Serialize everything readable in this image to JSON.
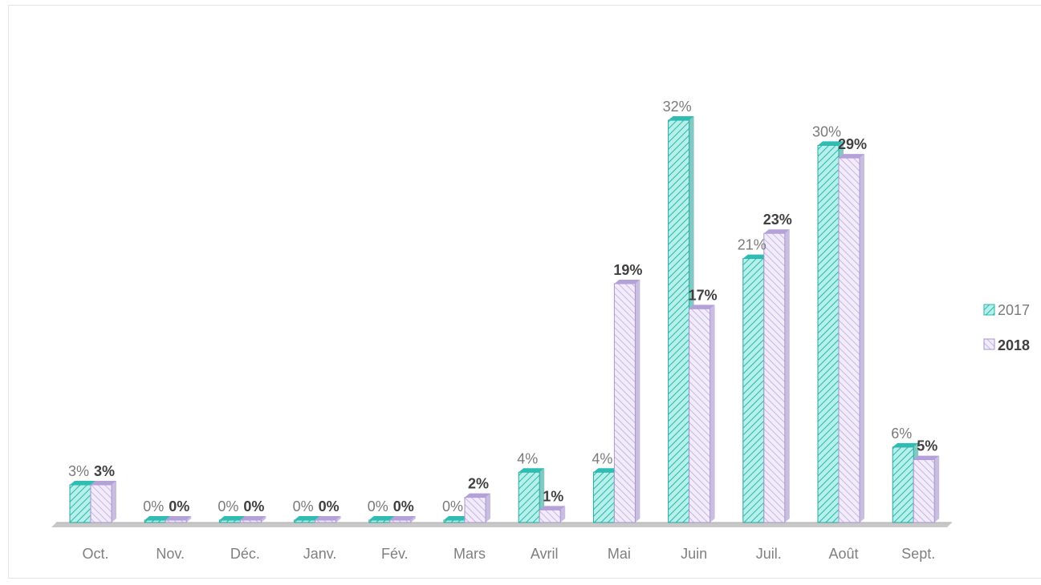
{
  "chart_data": {
    "type": "bar",
    "categories": [
      "Oct.",
      "Nov.",
      "Déc.",
      "Janv.",
      "Fév.",
      "Mars",
      "Avril",
      "Mai",
      "Juin",
      "Juil.",
      "Août",
      "Sept."
    ],
    "series": [
      {
        "name": "2017",
        "values": [
          3,
          0,
          0,
          0,
          0,
          0,
          4,
          4,
          32,
          21,
          30,
          6
        ],
        "labels": [
          "3%",
          "0%",
          "0%",
          "0%",
          "0%",
          "0%",
          "4%",
          "4%",
          "32%",
          "21%",
          "30%",
          "6%"
        ],
        "color": "#3ec9bf"
      },
      {
        "name": "2018",
        "values": [
          3,
          0,
          0,
          0,
          0,
          2,
          1,
          19,
          17,
          23,
          29,
          5
        ],
        "labels": [
          "3%",
          "0%",
          "0%",
          "0%",
          "0%",
          "2%",
          "1%",
          "19%",
          "17%",
          "23%",
          "29%",
          "5%"
        ],
        "color": "#c3b2e3"
      }
    ],
    "ylim": [
      0,
      35
    ],
    "grid": false,
    "legend": "right",
    "style": "3d-hatched"
  }
}
